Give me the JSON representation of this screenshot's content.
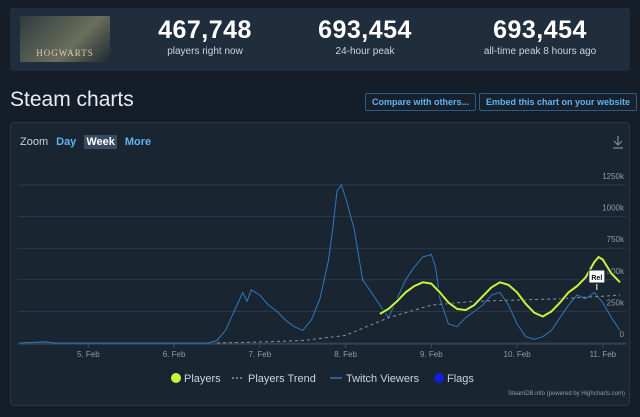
{
  "header": {
    "logo_text": "HOGWARTS",
    "stats": [
      {
        "value": "467,748",
        "label": "players right now"
      },
      {
        "value": "693,454",
        "label": "24-hour peak"
      },
      {
        "value": "693,454",
        "label": "all-time peak 8 hours ago"
      }
    ]
  },
  "section": {
    "title": "Steam charts",
    "buttons": [
      "Compare with others...",
      "Embed this chart on your website"
    ]
  },
  "zoom": {
    "label": "Zoom",
    "options": [
      "Day",
      "Week",
      "More"
    ],
    "selected": "Week"
  },
  "credit": "SteamDB.info (powered by Highcharts.com)",
  "chart_data": {
    "type": "line",
    "xlim": [
      4.18,
      11.27
    ],
    "xticks": [
      {
        "value": 5,
        "label": "5. Feb"
      },
      {
        "value": 6,
        "label": "6. Feb"
      },
      {
        "value": 7,
        "label": "7. Feb"
      },
      {
        "value": 8,
        "label": "8. Feb"
      },
      {
        "value": 9,
        "label": "9. Feb"
      },
      {
        "value": 10,
        "label": "10. Feb"
      },
      {
        "value": 11,
        "label": "11. Feb"
      }
    ],
    "ylim": [
      0,
      1250000
    ],
    "yticks": [
      0,
      {
        "value": 250000,
        "label": "250k"
      },
      {
        "value": 500000,
        "label": "500k"
      },
      {
        "value": 750000,
        "label": "750k"
      },
      {
        "value": 1000000,
        "label": "1000k"
      },
      {
        "value": 1250000,
        "label": "1250k"
      }
    ],
    "grid": true,
    "series": [
      {
        "name": "Players",
        "color": "#c6f53c",
        "x": [
          8.4,
          8.5,
          8.6,
          8.7,
          8.8,
          8.9,
          9.0,
          9.1,
          9.2,
          9.3,
          9.4,
          9.5,
          9.6,
          9.7,
          9.8,
          9.9,
          10.0,
          10.1,
          10.2,
          10.3,
          10.4,
          10.5,
          10.6,
          10.7,
          10.8,
          10.9,
          10.95,
          11.0,
          11.1,
          11.2
        ],
        "values": [
          230000,
          270000,
          330000,
          400000,
          450000,
          480000,
          470000,
          400000,
          320000,
          270000,
          260000,
          300000,
          370000,
          440000,
          480000,
          460000,
          400000,
          310000,
          240000,
          210000,
          250000,
          320000,
          400000,
          450000,
          520000,
          640000,
          680000,
          660000,
          550000,
          480000
        ]
      },
      {
        "name": "Players Trend",
        "color": "#8a929c",
        "dashed": true,
        "x": [
          6.5,
          7.0,
          7.5,
          8.0,
          8.5,
          9.0,
          9.5,
          10.0,
          10.5,
          11.0,
          11.2
        ],
        "values": [
          0,
          8000,
          20000,
          60000,
          200000,
          300000,
          330000,
          340000,
          350000,
          370000,
          380000
        ]
      },
      {
        "name": "Twitch Viewers",
        "color": "#2f79b9",
        "x": [
          4.2,
          4.5,
          4.6,
          5.0,
          6.0,
          6.4,
          6.5,
          6.6,
          6.7,
          6.8,
          6.85,
          6.9,
          7.0,
          7.1,
          7.2,
          7.3,
          7.4,
          7.5,
          7.6,
          7.7,
          7.8,
          7.85,
          7.9,
          7.95,
          8.0,
          8.1,
          8.15,
          8.2,
          8.3,
          8.4,
          8.5,
          8.6,
          8.7,
          8.8,
          8.9,
          9.0,
          9.05,
          9.1,
          9.2,
          9.3,
          9.4,
          9.5,
          9.6,
          9.7,
          9.8,
          9.9,
          10.0,
          10.1,
          10.2,
          10.3,
          10.4,
          10.5,
          10.6,
          10.7,
          10.8,
          10.9,
          11.0,
          11.1,
          11.2
        ],
        "values": [
          0,
          10000,
          0,
          0,
          0,
          0,
          20000,
          100000,
          250000,
          400000,
          330000,
          420000,
          380000,
          300000,
          250000,
          180000,
          130000,
          100000,
          180000,
          350000,
          650000,
          900000,
          1200000,
          1250000,
          1150000,
          900000,
          700000,
          500000,
          400000,
          300000,
          200000,
          350000,
          500000,
          600000,
          680000,
          700000,
          600000,
          350000,
          150000,
          130000,
          200000,
          250000,
          300000,
          380000,
          400000,
          300000,
          150000,
          50000,
          30000,
          50000,
          100000,
          200000,
          300000,
          380000,
          350000,
          400000,
          320000,
          200000,
          100000
        ]
      },
      {
        "name": "Flags",
        "color": "#1020d8",
        "x": [
          10.93
        ],
        "labels": [
          "Rel"
        ]
      }
    ]
  }
}
